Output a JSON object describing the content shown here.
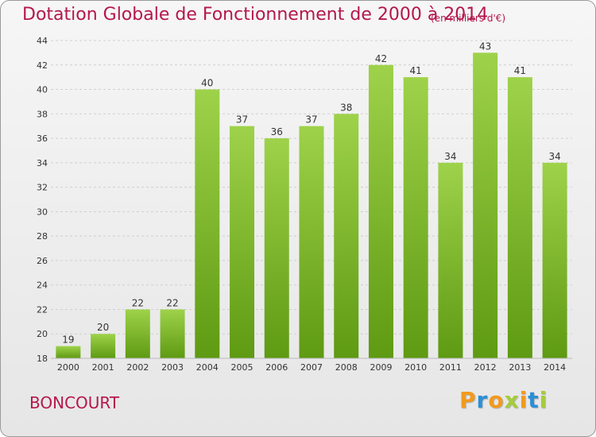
{
  "header": {
    "title": "Dotation Globale de Fonctionnement de 2000 à 2014",
    "subtitle": "(en milliers d'€)"
  },
  "footer": {
    "commune": "BONCOURT",
    "brand": "Proxiti"
  },
  "colors": {
    "title": "#b5174b",
    "bar_top": "#9ed24a",
    "bar_bottom": "#5e9a12",
    "grid": "#cfcfcf",
    "axis_text": "#333333",
    "brand_letters": [
      "#f29a1c",
      "#2b8fd6",
      "#f29a1c",
      "#a5cd39",
      "#f29a1c",
      "#2b8fd6",
      "#a5cd39"
    ]
  },
  "chart_data": {
    "type": "bar",
    "title": "Dotation Globale de Fonctionnement de 2000 à 2014",
    "subtitle": "(en milliers d'€)",
    "xlabel": "",
    "ylabel": "",
    "categories": [
      "2000",
      "2001",
      "2002",
      "2003",
      "2004",
      "2005",
      "2006",
      "2007",
      "2008",
      "2009",
      "2010",
      "2011",
      "2012",
      "2013",
      "2014"
    ],
    "values": [
      19,
      20,
      22,
      22,
      40,
      37,
      36,
      37,
      38,
      42,
      41,
      34,
      43,
      41,
      34
    ],
    "ylim": [
      18,
      44
    ],
    "yticks": [
      18,
      20,
      22,
      24,
      26,
      28,
      30,
      32,
      34,
      36,
      38,
      40,
      42,
      44
    ],
    "grid": true,
    "data_labels": true,
    "legend": "none"
  }
}
